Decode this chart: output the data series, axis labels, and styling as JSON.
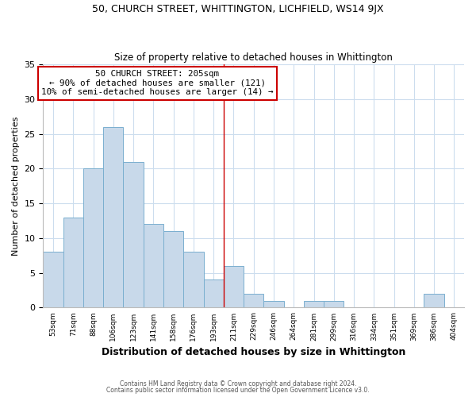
{
  "title": "50, CHURCH STREET, WHITTINGTON, LICHFIELD, WS14 9JX",
  "subtitle": "Size of property relative to detached houses in Whittington",
  "xlabel": "Distribution of detached houses by size in Whittington",
  "ylabel": "Number of detached properties",
  "bin_labels": [
    "53sqm",
    "71sqm",
    "88sqm",
    "106sqm",
    "123sqm",
    "141sqm",
    "158sqm",
    "176sqm",
    "193sqm",
    "211sqm",
    "229sqm",
    "246sqm",
    "264sqm",
    "281sqm",
    "299sqm",
    "316sqm",
    "334sqm",
    "351sqm",
    "369sqm",
    "386sqm",
    "404sqm"
  ],
  "bar_heights": [
    8,
    13,
    20,
    26,
    21,
    12,
    11,
    8,
    4,
    6,
    2,
    1,
    0,
    1,
    1,
    0,
    0,
    0,
    0,
    2,
    0
  ],
  "bar_color": "#c8d9ea",
  "bar_edge_color": "#7aafcf",
  "vline_color": "#cc0000",
  "annotation_text": "50 CHURCH STREET: 205sqm\n← 90% of detached houses are smaller (121)\n10% of semi-detached houses are larger (14) →",
  "annotation_box_color": "#ffffff",
  "annotation_box_edge": "#cc0000",
  "ylim": [
    0,
    35
  ],
  "yticks": [
    0,
    5,
    10,
    15,
    20,
    25,
    30,
    35
  ],
  "footer1": "Contains HM Land Registry data © Crown copyright and database right 2024.",
  "footer2": "Contains public sector information licensed under the Open Government Licence v3.0.",
  "bg_color": "#ffffff",
  "plot_bg_color": "#ffffff",
  "grid_color": "#ccddee"
}
